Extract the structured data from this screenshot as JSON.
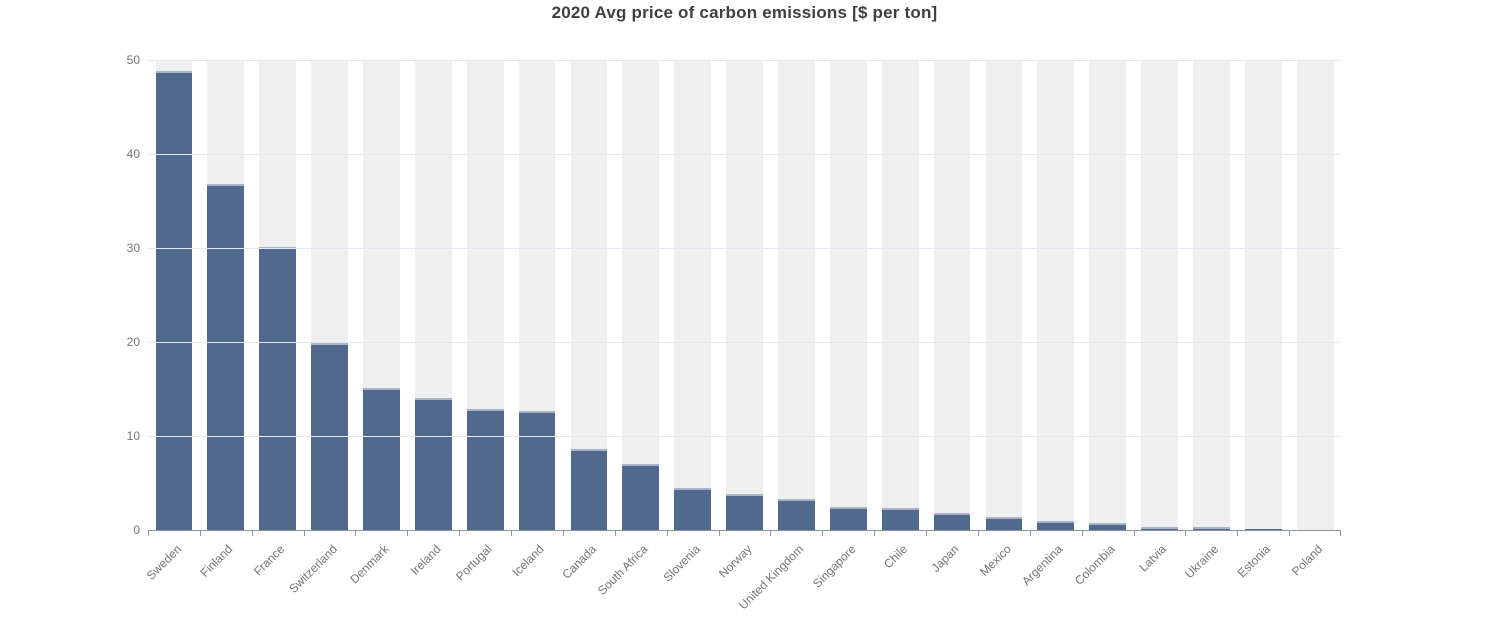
{
  "header": {
    "title": "2020 Avg price of carbon emissions [$ per ton]"
  },
  "chart_data": {
    "type": "bar",
    "title": "2020 Avg price of carbon emissions [$ per ton]",
    "categories": [
      "Sweden",
      "Finland",
      "France",
      "Switzerland",
      "Denmark",
      "Ireland",
      "Portugal",
      "Iceland",
      "Canada",
      "South Africa",
      "Slovenia",
      "Norway",
      "United Kingdom",
      "Singapore",
      "Chile",
      "Japan",
      "Mexico",
      "Argentina",
      "Colombia",
      "Latvia",
      "Ukraine",
      "Estonia",
      "Poland"
    ],
    "values": [
      48.8,
      36.8,
      30.1,
      19.9,
      15.1,
      14.0,
      12.9,
      12.7,
      8.6,
      7.0,
      4.5,
      3.8,
      3.3,
      2.4,
      2.3,
      1.8,
      1.4,
      1.0,
      0.7,
      0.35,
      0.3,
      0.07,
      0.03
    ],
    "xlabel": "",
    "ylabel": "",
    "ylim": [
      0,
      50
    ],
    "yticks": [
      0,
      10,
      20,
      30,
      40,
      50
    ],
    "grid": true,
    "legend": false,
    "x_label_rotation_deg": 45,
    "colors": {
      "bar": "#52698e",
      "bar_top_edge": "#a9b4c8",
      "category_band": "#efefef",
      "gridline": "#e2e7f1",
      "axis_line": "#8b939e",
      "tick_label": "#757575",
      "title": "#3f3f3f",
      "background": "#ffffff"
    }
  }
}
